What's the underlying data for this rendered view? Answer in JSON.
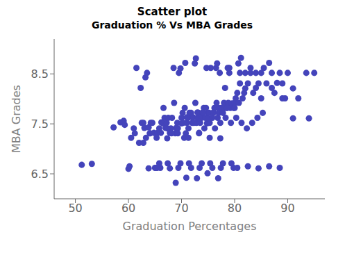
{
  "chart_data": {
    "type": "scatter",
    "title": "Scatter plot",
    "subtitle": "Graduation % Vs MBA Grades",
    "xlabel": "Graduation Percentages",
    "ylabel": "MBA Grades",
    "color": "#4444bb",
    "grid": false,
    "xlim": [
      46,
      97
    ],
    "ylim": [
      6.0,
      9.2
    ],
    "xticks": [
      50,
      60,
      70,
      80,
      90
    ],
    "yticks": [
      6.5,
      7.5,
      8.5
    ],
    "x": [
      51.2,
      53.1,
      57.2,
      58.5,
      59.1,
      59.3,
      60.0,
      60.2,
      61.0,
      61.5,
      62.0,
      62.3,
      62.5,
      62.8,
      63.0,
      63.2,
      63.5,
      63.8,
      64.0,
      64.2,
      64.5,
      64.8,
      65.0,
      65.2,
      65.5,
      65.8,
      66.0,
      66.2,
      66.5,
      66.8,
      67.0,
      67.2,
      67.5,
      67.8,
      68.0,
      68.2,
      68.5,
      68.8,
      69.0,
      69.2,
      69.5,
      69.8,
      70.0,
      70.0,
      70.2,
      70.5,
      70.8,
      71.0,
      71.0,
      71.2,
      71.5,
      71.8,
      72.0,
      72.0,
      72.2,
      72.5,
      72.8,
      73.0,
      73.0,
      73.2,
      73.5,
      73.8,
      74.0,
      74.0,
      74.2,
      74.5,
      74.8,
      75.0,
      75.0,
      75.2,
      75.5,
      75.8,
      76.0,
      76.0,
      76.2,
      76.5,
      76.8,
      77.0,
      77.0,
      77.2,
      77.5,
      77.8,
      78.0,
      78.0,
      78.2,
      78.5,
      78.8,
      79.0,
      79.0,
      79.2,
      79.5,
      79.8,
      80.0,
      80.0,
      80.2,
      80.5,
      80.8,
      81.0,
      81.0,
      81.2,
      81.5,
      81.8,
      82.0,
      82.0,
      82.5,
      83.0,
      83.0,
      83.5,
      84.0,
      84.0,
      84.5,
      85.0,
      85.0,
      85.5,
      86.0,
      86.5,
      87.0,
      87.5,
      88.0,
      88.5,
      89.0,
      89.5,
      90.0,
      91.0,
      92.0,
      94.0,
      95.0,
      60.5,
      61.2,
      62.8,
      63.3,
      64.1,
      65.3,
      66.1,
      67.3,
      68.1,
      69.3,
      70.3,
      71.3,
      72.3,
      73.3,
      74.3,
      75.3,
      76.3,
      77.3,
      78.3,
      79.3,
      80.3,
      81.3,
      82.3,
      83.3,
      84.3,
      85.3,
      63.8,
      65.8,
      67.8,
      69.8,
      71.8,
      73.8,
      75.8,
      77.8,
      79.8,
      65.4,
      67.4,
      69.4,
      71.4,
      73.4,
      75.4,
      77.4,
      79.4,
      66.6,
      68.6,
      70.6,
      72.6,
      74.6,
      76.6,
      78.6,
      67.3,
      69.3,
      71.3,
      73.3,
      75.3,
      77.3,
      70.7,
      72.7,
      74.7,
      76.7,
      78.7,
      80.7,
      68.9,
      70.9,
      72.9,
      74.9,
      76.9,
      80.5,
      82.5,
      84.5,
      86.5,
      88.5,
      87.0,
      89.0,
      91.0,
      93.5
    ],
    "values": [
      6.68,
      6.7,
      7.43,
      7.53,
      7.56,
      7.48,
      6.6,
      6.65,
      7.41,
      8.62,
      7.12,
      8.22,
      7.52,
      7.52,
      7.42,
      8.43,
      8.52,
      7.43,
      7.31,
      7.52,
      7.52,
      7.32,
      6.62,
      6.62,
      7.32,
      7.41,
      6.62,
      7.53,
      7.51,
      7.62,
      7.42,
      7.52,
      7.62,
      7.32,
      7.41,
      7.62,
      8.62,
      7.31,
      7.42,
      7.52,
      8.52,
      8.61,
      7.51,
      7.62,
      7.72,
      7.22,
      7.31,
      7.52,
      7.63,
      7.62,
      7.72,
      7.72,
      7.52,
      7.63,
      7.63,
      8.71,
      7.52,
      7.62,
      7.73,
      7.72,
      7.52,
      7.62,
      7.72,
      7.73,
      7.82,
      7.62,
      7.51,
      7.61,
      7.72,
      7.72,
      8.62,
      7.62,
      7.72,
      7.73,
      7.82,
      8.62,
      7.62,
      7.72,
      7.82,
      8.52,
      7.82,
      7.72,
      7.82,
      7.92,
      8.22,
      7.82,
      7.92,
      8.52,
      8.62,
      7.82,
      7.91,
      7.82,
      7.82,
      7.92,
      8.01,
      8.12,
      7.92,
      8.52,
      8.31,
      8.82,
      8.01,
      8.12,
      8.52,
      8.21,
      8.31,
      8.52,
      8.62,
      8.12,
      8.22,
      8.52,
      8.31,
      8.01,
      8.52,
      8.62,
      8.31,
      8.72,
      8.22,
      8.12,
      8.32,
      8.52,
      8.31,
      8.01,
      8.52,
      8.21,
      8.01,
      7.61,
      8.52,
      7.22,
      7.31,
      7.12,
      7.22,
      7.31,
      7.22,
      7.32,
      7.41,
      7.31,
      7.41,
      7.52,
      7.41,
      7.52,
      7.32,
      7.41,
      7.52,
      7.41,
      7.52,
      7.62,
      7.52,
      7.62,
      7.52,
      7.41,
      7.52,
      7.62,
      7.72,
      6.61,
      6.71,
      6.61,
      6.71,
      6.62,
      6.71,
      6.62,
      6.71,
      6.62,
      6.62,
      6.71,
      6.62,
      6.71,
      6.62,
      6.71,
      6.62,
      6.71,
      7.82,
      7.92,
      7.82,
      7.92,
      7.82,
      7.92,
      7.82,
      7.21,
      7.31,
      7.22,
      7.31,
      7.22,
      7.21,
      8.72,
      8.81,
      8.62,
      8.71,
      8.62,
      8.71,
      6.32,
      6.42,
      6.41,
      6.51,
      6.41,
      6.62,
      6.65,
      6.61,
      6.65,
      6.62,
      8.52,
      8.01,
      7.61,
      8.52
    ]
  }
}
